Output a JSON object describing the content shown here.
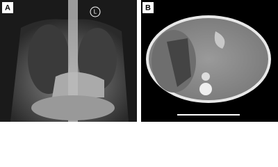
{
  "panels": [
    {
      "label": "A",
      "marker": "L"
    },
    {
      "label": "B"
    }
  ]
}
